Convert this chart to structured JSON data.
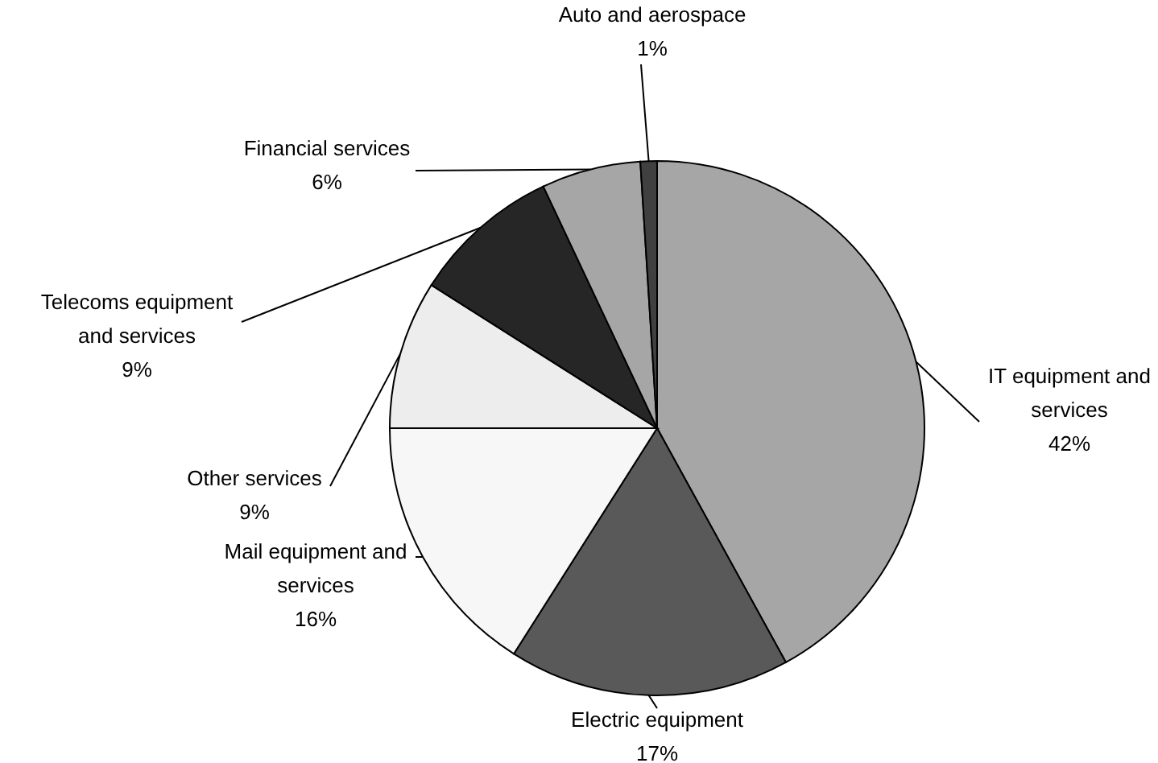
{
  "chart_data": {
    "type": "pie",
    "categories": [
      "IT equipment and services",
      "Electric equipment",
      "Mail equipment and services",
      "Other services",
      "Telecoms equipment and services",
      "Financial services",
      "Auto and aerospace"
    ],
    "values": [
      42,
      17,
      16,
      9,
      9,
      6,
      1
    ],
    "value_labels": [
      "42%",
      "17%",
      "16%",
      "9%",
      "9%",
      "6%",
      "1%"
    ],
    "colors": [
      "#a6a6a6",
      "#595959",
      "#f7f7f7",
      "#ededed",
      "#262626",
      "#a6a6a6",
      "#404040"
    ]
  }
}
